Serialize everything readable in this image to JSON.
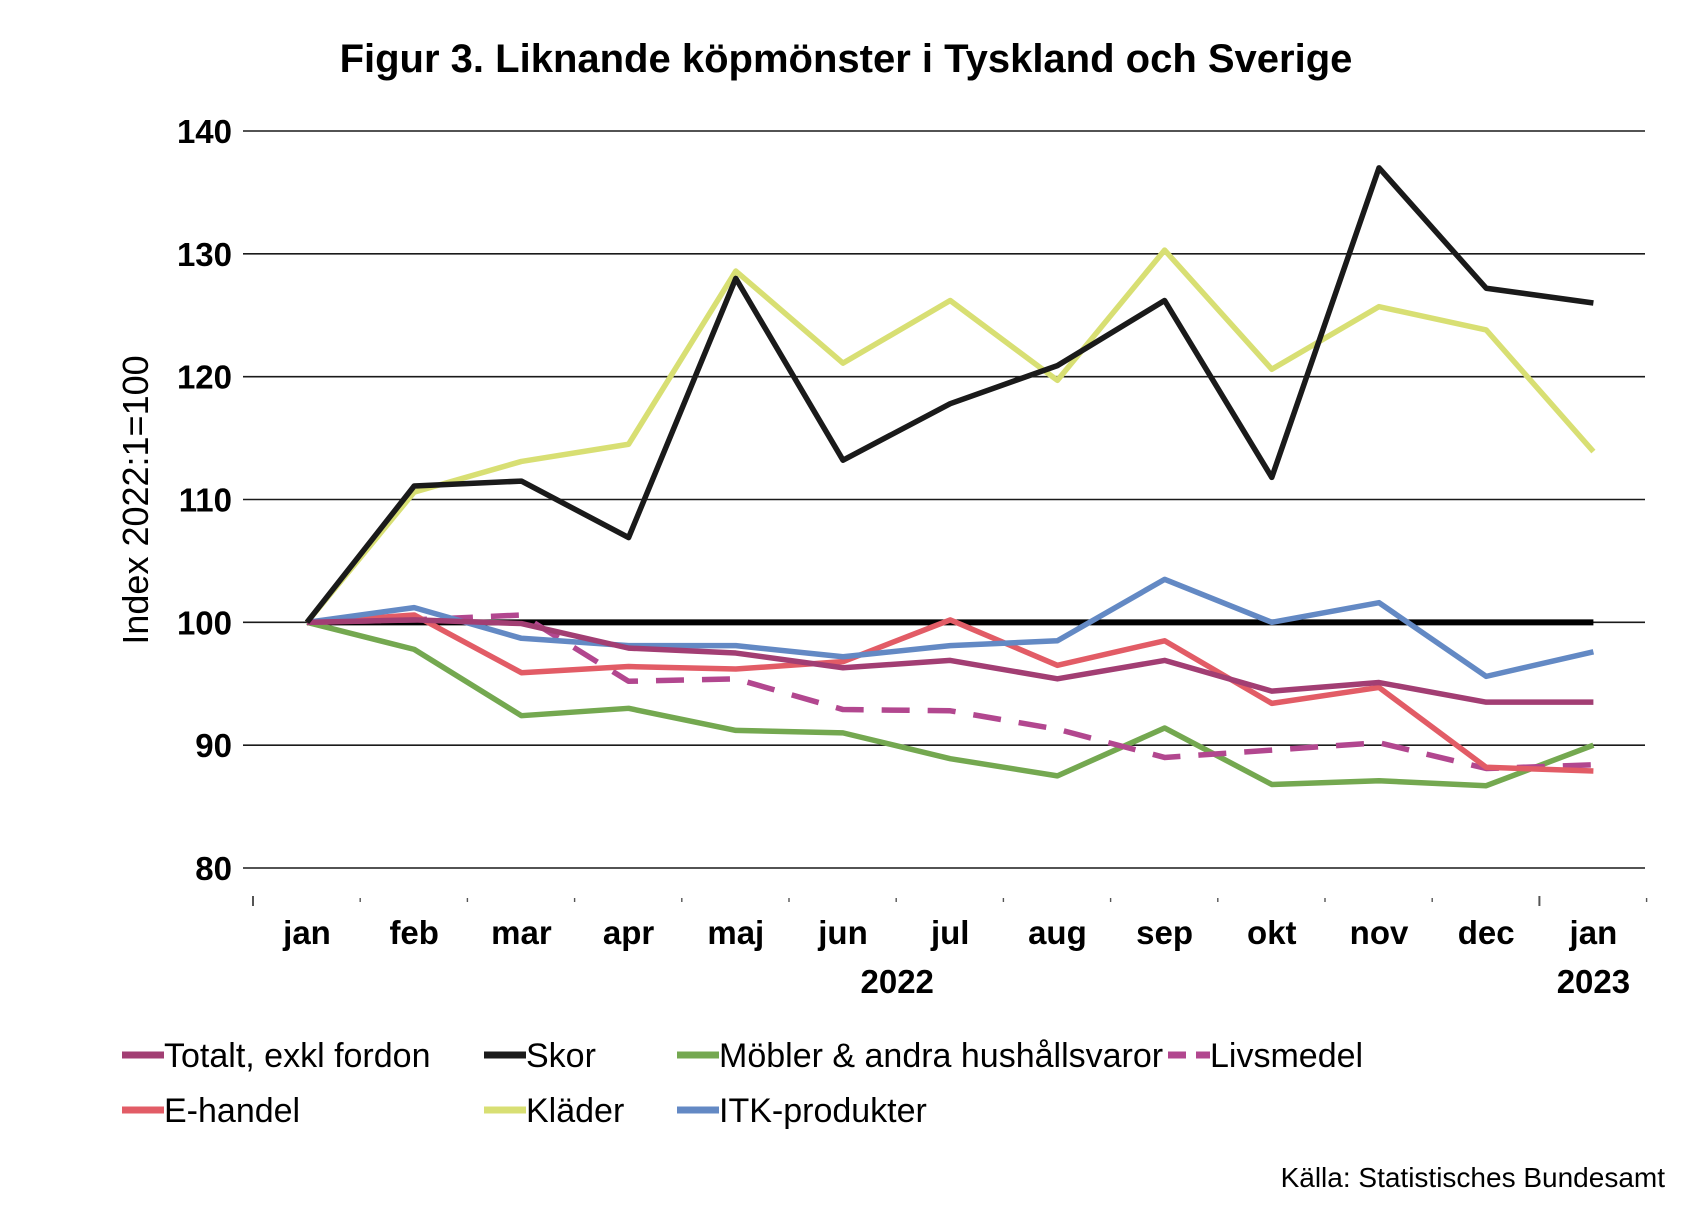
{
  "chart_data": {
    "type": "line",
    "title": "Figur 3. Liknande köpmönster i Tyskland och Sverige",
    "ylabel": "Index 2022:1=100",
    "xlabel": "",
    "ylim": [
      80,
      140
    ],
    "yticks": [
      80,
      90,
      100,
      110,
      120,
      130,
      140
    ],
    "grid": true,
    "categories": [
      "jan",
      "feb",
      "mar",
      "apr",
      "maj",
      "jun",
      "jul",
      "aug",
      "sep",
      "okt",
      "nov",
      "dec",
      "jan"
    ],
    "year_labels": [
      {
        "label": "2022",
        "category_index": 6
      },
      {
        "label": "2023",
        "category_index": 12
      }
    ],
    "reference_line": 100,
    "legend_position": "bottom",
    "series": [
      {
        "name": "Totalt, exkl fordon",
        "color": "#a23e73",
        "dashed": false,
        "values": [
          100,
          100.2,
          99.9,
          97.9,
          97.5,
          96.3,
          96.9,
          95.4,
          96.9,
          94.4,
          95.1,
          93.5,
          93.5
        ]
      },
      {
        "name": "Skor",
        "color": "#1a1a1a",
        "dashed": false,
        "values": [
          100,
          111.1,
          111.5,
          106.9,
          128,
          113.2,
          117.8,
          120.9,
          126.2,
          111.8,
          137,
          127.2,
          126
        ]
      },
      {
        "name": "Möbler & andra hushållsvaror",
        "color": "#74a850",
        "dashed": false,
        "values": [
          100,
          97.8,
          92.4,
          93,
          91.2,
          91,
          88.9,
          87.5,
          91.4,
          86.8,
          87.1,
          86.7,
          90
        ]
      },
      {
        "name": "Livsmedel",
        "color": "#b2478f",
        "dashed": true,
        "values": [
          100,
          100.2,
          100.6,
          95.2,
          95.4,
          92.9,
          92.8,
          91.3,
          89,
          89.6,
          90.2,
          88.1,
          88.4
        ]
      },
      {
        "name": "E-handel",
        "color": "#e25c66",
        "dashed": false,
        "values": [
          100,
          100.6,
          95.9,
          96.4,
          96.2,
          96.8,
          100.2,
          96.5,
          98.5,
          93.4,
          94.7,
          88.2,
          87.9
        ]
      },
      {
        "name": "Kläder",
        "color": "#d8df73",
        "dashed": false,
        "values": [
          100,
          110.6,
          113.1,
          114.5,
          128.6,
          121.1,
          126.2,
          119.7,
          130.3,
          120.6,
          125.7,
          123.8,
          113.9
        ]
      },
      {
        "name": "ITK-produkter",
        "color": "#6389c4",
        "dashed": false,
        "values": [
          100,
          101.2,
          98.7,
          98.1,
          98.1,
          97.2,
          98.1,
          98.5,
          103.5,
          100,
          101.6,
          95.6,
          97.6
        ]
      }
    ]
  },
  "source": "Källa: Statistisches Bundesamt"
}
